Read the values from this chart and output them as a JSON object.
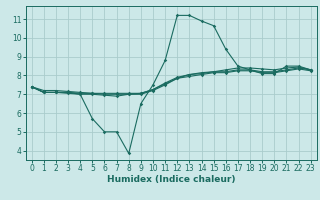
{
  "xlabel": "Humidex (Indice chaleur)",
  "bg_color": "#cce8e8",
  "line_color": "#1a6b60",
  "grid_color": "#aacccc",
  "xlim": [
    -0.5,
    23.5
  ],
  "ylim": [
    3.5,
    11.7
  ],
  "xticks": [
    0,
    1,
    2,
    3,
    4,
    5,
    6,
    7,
    8,
    9,
    10,
    11,
    12,
    13,
    14,
    15,
    16,
    17,
    18,
    19,
    20,
    21,
    22,
    23
  ],
  "yticks": [
    4,
    5,
    6,
    7,
    8,
    9,
    10,
    11
  ],
  "lines": [
    {
      "x": [
        0,
        1,
        2,
        3,
        4,
        5,
        6,
        7,
        8,
        9,
        10,
        11,
        12,
        13,
        14,
        15,
        16,
        17,
        18,
        19,
        20,
        21,
        22,
        23
      ],
      "y": [
        7.4,
        7.1,
        7.1,
        7.1,
        7.0,
        5.7,
        5.0,
        5.0,
        3.85,
        6.5,
        7.5,
        8.8,
        11.2,
        11.2,
        10.9,
        10.65,
        9.4,
        8.5,
        8.3,
        8.1,
        8.1,
        8.5,
        8.5,
        8.3
      ]
    },
    {
      "x": [
        0,
        1,
        2,
        3,
        4,
        5,
        6,
        7,
        8,
        9,
        10,
        11,
        12,
        13,
        14,
        15,
        16,
        17,
        18,
        19,
        20,
        21,
        22,
        23
      ],
      "y": [
        7.4,
        7.2,
        7.2,
        7.15,
        7.1,
        7.05,
        7.0,
        7.0,
        7.0,
        7.05,
        7.25,
        7.55,
        7.85,
        8.05,
        8.15,
        8.2,
        8.3,
        8.4,
        8.4,
        8.35,
        8.3,
        8.4,
        8.45,
        8.3
      ]
    },
    {
      "x": [
        0,
        1,
        2,
        3,
        4,
        5,
        6,
        7,
        8,
        9,
        10,
        11,
        12,
        13,
        14,
        15,
        16,
        17,
        18,
        19,
        20,
        21,
        22,
        23
      ],
      "y": [
        7.4,
        7.1,
        7.1,
        7.1,
        7.05,
        7.05,
        7.05,
        7.05,
        7.05,
        7.05,
        7.25,
        7.6,
        7.9,
        8.05,
        8.1,
        8.2,
        8.2,
        8.3,
        8.3,
        8.2,
        8.2,
        8.3,
        8.4,
        8.3
      ]
    },
    {
      "x": [
        0,
        1,
        2,
        3,
        4,
        5,
        6,
        7,
        8,
        9,
        10,
        11,
        12,
        13,
        14,
        15,
        16,
        17,
        18,
        19,
        20,
        21,
        22,
        23
      ],
      "y": [
        7.4,
        7.1,
        7.1,
        7.05,
        7.0,
        7.0,
        6.95,
        6.9,
        7.0,
        7.0,
        7.2,
        7.5,
        7.85,
        7.95,
        8.05,
        8.15,
        8.15,
        8.25,
        8.25,
        8.15,
        8.15,
        8.25,
        8.35,
        8.25
      ]
    }
  ]
}
